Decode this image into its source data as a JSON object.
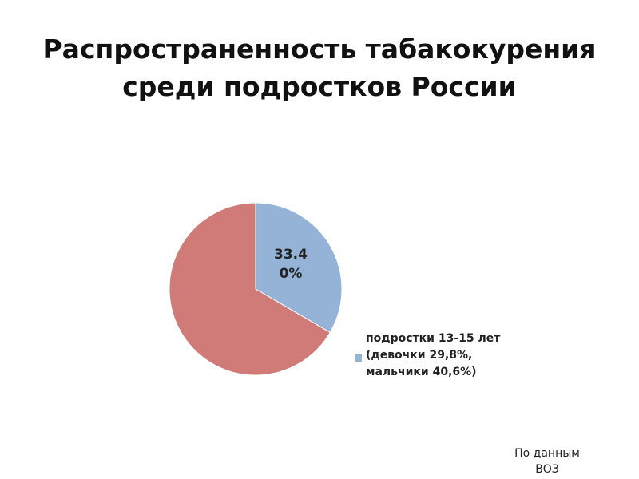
{
  "chart_data": {
    "type": "pie",
    "title": "Распространенность табакокурения\nсреди подростков России",
    "categories": [
      "подростки 13-15 лет (девочки 29,8%, мальчики 40,6%)",
      null
    ],
    "values": [
      33.4,
      66.6
    ],
    "value_labels": [
      "33.40%",
      null
    ],
    "colors": [
      "#95b3d7",
      "#d07b78"
    ],
    "source": "По данным\nВОЗ"
  }
}
